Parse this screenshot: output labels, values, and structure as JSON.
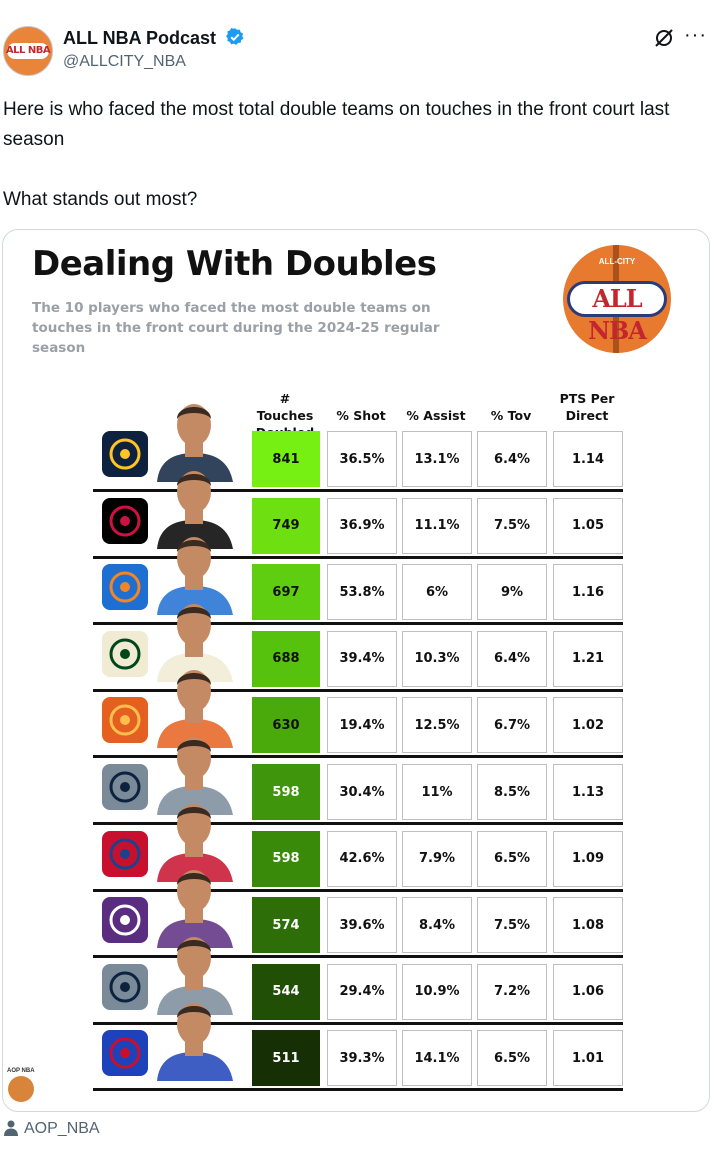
{
  "tweet": {
    "author_name": "ALL NBA Podcast",
    "handle": "@ALLCITY_NBA",
    "text_line1": "Here is who faced the most total double teams on touches in the front court last season",
    "text_line2": "What stands out most?",
    "avatar_text": "ALL NBA",
    "more_label": "···"
  },
  "graphic": {
    "title": "Dealing With Doubles",
    "subtitle": "The 10 players who faced the most double teams on touches in the front court during the 2024-25 regular season",
    "logo_top": "ALL-CITY",
    "logo_word": "ALL NBA",
    "watermark": "AOP NBA",
    "columns": {
      "touches": [
        "# Touches",
        "Doubled"
      ],
      "shot": "% Shot",
      "assist": "% Assist",
      "tov": "% Tov",
      "pts": [
        "PTS Per",
        "Direct"
      ]
    }
  },
  "chart_data": {
    "type": "table",
    "title": "Dealing With Doubles",
    "columns": [
      "# Touches Doubled",
      "% Shot",
      "% Assist",
      "% Tov",
      "PTS Per Direct"
    ],
    "rows": [
      {
        "team_icon": "nuggets-logo",
        "touches": "841",
        "shot": "36.5%",
        "assist": "13.1%",
        "tov": "6.4%",
        "pts": "1.14",
        "color": "#76f012"
      },
      {
        "team_icon": "rockets-logo",
        "touches": "749",
        "shot": "36.9%",
        "assist": "11.1%",
        "tov": "7.5%",
        "pts": "1.05",
        "color": "#6ee011"
      },
      {
        "team_icon": "knicks-logo",
        "touches": "697",
        "shot": "53.8%",
        "assist": "6%",
        "tov": "9%",
        "pts": "1.16",
        "color": "#5fce10"
      },
      {
        "team_icon": "bucks-logo",
        "touches": "688",
        "shot": "39.4%",
        "assist": "10.3%",
        "tov": "6.4%",
        "pts": "1.21",
        "color": "#56c20e"
      },
      {
        "team_icon": "suns-logo",
        "touches": "630",
        "shot": "19.4%",
        "assist": "12.5%",
        "tov": "6.7%",
        "pts": "1.02",
        "color": "#4aaa0c"
      },
      {
        "team_icon": "timberwolves-logo",
        "touches": "598",
        "shot": "30.4%",
        "assist": "11%",
        "tov": "8.5%",
        "pts": "1.13",
        "color": "#3f950b"
      },
      {
        "team_icon": "clippers-logo",
        "touches": "598",
        "shot": "42.6%",
        "assist": "7.9%",
        "tov": "6.5%",
        "pts": "1.09",
        "color": "#3a8a0a"
      },
      {
        "team_icon": "kings-logo",
        "touches": "574",
        "shot": "39.6%",
        "assist": "8.4%",
        "tov": "7.5%",
        "pts": "1.08",
        "color": "#2d6e08"
      },
      {
        "team_icon": "timberwolves-logo",
        "touches": "544",
        "shot": "29.4%",
        "assist": "10.9%",
        "tov": "7.2%",
        "pts": "1.06",
        "color": "#214f06"
      },
      {
        "team_icon": "pistons-logo",
        "touches": "511",
        "shot": "39.3%",
        "assist": "14.1%",
        "tov": "6.5%",
        "pts": "1.01",
        "color": "#162f05"
      }
    ]
  },
  "team_colors": {
    "nuggets-logo": [
      "#0e2240",
      "#fec524"
    ],
    "rockets-logo": [
      "#000000",
      "#ce1141"
    ],
    "knicks-logo": [
      "#1d6fd1",
      "#f58426"
    ],
    "bucks-logo": [
      "#f0ebd2",
      "#00471b"
    ],
    "suns-logo": [
      "#e56020",
      "#fcbf4f"
    ],
    "timberwolves-logo": [
      "#7a8a99",
      "#0c2340"
    ],
    "clippers-logo": [
      "#c8102e",
      "#1d428a"
    ],
    "kings-logo": [
      "#5a2d81",
      "#ffffff"
    ],
    "pistons-logo": [
      "#1d42ba",
      "#c8102e"
    ]
  },
  "footer": {
    "tagged_user": "AOP_NBA"
  }
}
